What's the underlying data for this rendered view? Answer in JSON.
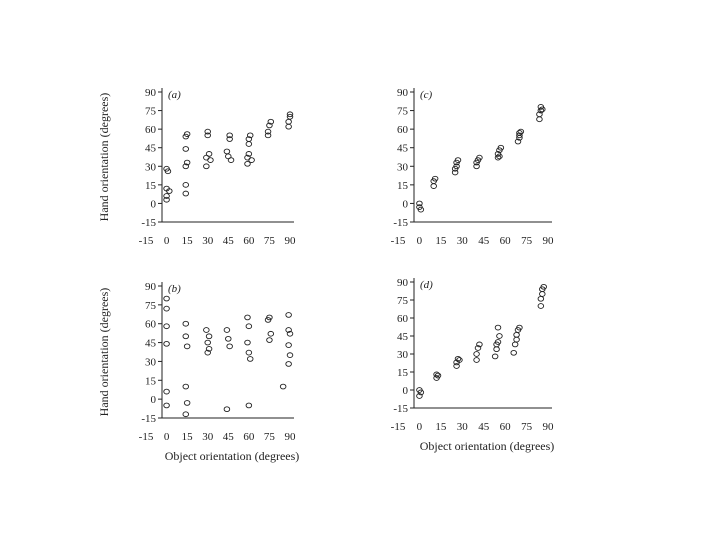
{
  "chart_data": [
    {
      "id": "a",
      "type": "scatter",
      "panel_label": "(a)",
      "ylabel": "Hand orientation (degrees)",
      "xlabel": "",
      "xlim": [
        -15,
        90
      ],
      "ylim": [
        -15,
        90
      ],
      "xticks": [
        -15,
        0,
        15,
        30,
        45,
        60,
        75,
        90
      ],
      "yticks": [
        90,
        75,
        60,
        45,
        30,
        15,
        0,
        -15
      ],
      "grid": false,
      "points": [
        [
          0,
          3
        ],
        [
          0,
          6
        ],
        [
          0,
          12
        ],
        [
          0,
          28
        ],
        [
          1,
          26
        ],
        [
          2,
          10
        ],
        [
          14,
          8
        ],
        [
          14,
          15
        ],
        [
          14,
          30
        ],
        [
          14,
          44
        ],
        [
          14,
          54
        ],
        [
          15,
          56
        ],
        [
          15,
          33
        ],
        [
          29,
          30
        ],
        [
          29,
          37
        ],
        [
          30,
          55
        ],
        [
          30,
          58
        ],
        [
          31,
          40
        ],
        [
          32,
          35
        ],
        [
          44,
          42
        ],
        [
          45,
          38
        ],
        [
          46,
          52
        ],
        [
          46,
          55
        ],
        [
          47,
          35
        ],
        [
          59,
          32
        ],
        [
          59,
          37
        ],
        [
          60,
          40
        ],
        [
          60,
          48
        ],
        [
          60,
          52
        ],
        [
          61,
          55
        ],
        [
          62,
          35
        ],
        [
          74,
          55
        ],
        [
          74,
          58
        ],
        [
          75,
          63
        ],
        [
          76,
          66
        ],
        [
          89,
          62
        ],
        [
          89,
          66
        ],
        [
          90,
          70
        ],
        [
          90,
          72
        ]
      ]
    },
    {
      "id": "b",
      "type": "scatter",
      "panel_label": "(b)",
      "ylabel": "Hand orientation (degrees)",
      "xlabel": "Object orientation (degrees)",
      "xlim": [
        -15,
        90
      ],
      "ylim": [
        -15,
        90
      ],
      "xticks": [
        -15,
        0,
        15,
        30,
        45,
        60,
        75,
        90
      ],
      "yticks": [
        90,
        75,
        60,
        45,
        30,
        15,
        0,
        -15
      ],
      "grid": false,
      "points": [
        [
          0,
          80
        ],
        [
          0,
          72
        ],
        [
          0,
          58
        ],
        [
          0,
          44
        ],
        [
          0,
          6
        ],
        [
          0,
          -5
        ],
        [
          14,
          60
        ],
        [
          14,
          50
        ],
        [
          15,
          42
        ],
        [
          14,
          10
        ],
        [
          15,
          -3
        ],
        [
          14,
          -12
        ],
        [
          29,
          55
        ],
        [
          30,
          45
        ],
        [
          31,
          40
        ],
        [
          30,
          37
        ],
        [
          31,
          50
        ],
        [
          44,
          55
        ],
        [
          45,
          48
        ],
        [
          46,
          42
        ],
        [
          44,
          -8
        ],
        [
          59,
          65
        ],
        [
          60,
          58
        ],
        [
          59,
          45
        ],
        [
          60,
          37
        ],
        [
          61,
          32
        ],
        [
          60,
          -5
        ],
        [
          74,
          63
        ],
        [
          75,
          65
        ],
        [
          75,
          47
        ],
        [
          76,
          52
        ],
        [
          89,
          67
        ],
        [
          89,
          55
        ],
        [
          90,
          52
        ],
        [
          89,
          43
        ],
        [
          90,
          35
        ],
        [
          89,
          28
        ],
        [
          85,
          10
        ]
      ]
    },
    {
      "id": "c",
      "type": "scatter",
      "panel_label": "(c)",
      "ylabel": "",
      "xlabel": "",
      "xlim": [
        -15,
        90
      ],
      "ylim": [
        -15,
        90
      ],
      "xticks": [
        -15,
        0,
        15,
        30,
        45,
        60,
        75,
        90
      ],
      "yticks": [
        90,
        75,
        60,
        45,
        30,
        15,
        0,
        -15
      ],
      "grid": false,
      "points": [
        [
          0,
          -3
        ],
        [
          0,
          0
        ],
        [
          1,
          -5
        ],
        [
          10,
          14
        ],
        [
          10,
          18
        ],
        [
          11,
          20
        ],
        [
          25,
          25
        ],
        [
          25,
          28
        ],
        [
          26,
          33
        ],
        [
          27,
          35
        ],
        [
          26,
          30
        ],
        [
          40,
          30
        ],
        [
          40,
          33
        ],
        [
          41,
          35
        ],
        [
          42,
          37
        ],
        [
          55,
          37
        ],
        [
          55,
          40
        ],
        [
          56,
          43
        ],
        [
          57,
          45
        ],
        [
          56,
          38
        ],
        [
          69,
          50
        ],
        [
          70,
          53
        ],
        [
          70,
          57
        ],
        [
          71,
          58
        ],
        [
          70,
          55
        ],
        [
          84,
          68
        ],
        [
          84,
          72
        ],
        [
          85,
          75
        ],
        [
          85,
          78
        ],
        [
          86,
          76
        ]
      ]
    },
    {
      "id": "d",
      "type": "scatter",
      "panel_label": "(d)",
      "ylabel": "",
      "xlabel": "Object orientation (degrees)",
      "xlim": [
        -15,
        90
      ],
      "ylim": [
        -15,
        90
      ],
      "xticks": [
        -15,
        0,
        15,
        30,
        45,
        60,
        75,
        90
      ],
      "yticks": [
        90,
        75,
        60,
        45,
        30,
        15,
        0,
        -15
      ],
      "grid": false,
      "points": [
        [
          0,
          -5
        ],
        [
          0,
          0
        ],
        [
          1,
          -2
        ],
        [
          12,
          10
        ],
        [
          12,
          13
        ],
        [
          13,
          12
        ],
        [
          26,
          20
        ],
        [
          26,
          23
        ],
        [
          27,
          26
        ],
        [
          28,
          25
        ],
        [
          40,
          25
        ],
        [
          40,
          30
        ],
        [
          41,
          35
        ],
        [
          42,
          38
        ],
        [
          53,
          28
        ],
        [
          54,
          34
        ],
        [
          54,
          38
        ],
        [
          55,
          40
        ],
        [
          56,
          45
        ],
        [
          55,
          52
        ],
        [
          66,
          31
        ],
        [
          67,
          38
        ],
        [
          68,
          42
        ],
        [
          68,
          46
        ],
        [
          69,
          50
        ],
        [
          70,
          52
        ],
        [
          85,
          70
        ],
        [
          85,
          76
        ],
        [
          86,
          80
        ],
        [
          86,
          84
        ],
        [
          87,
          86
        ]
      ]
    }
  ]
}
